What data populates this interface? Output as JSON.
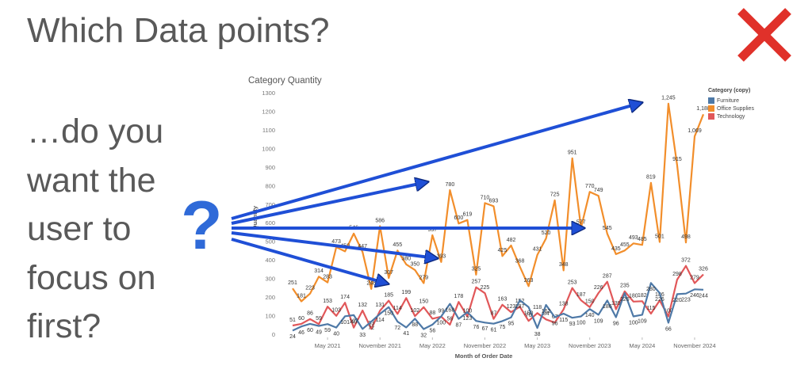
{
  "slide": {
    "title": "Which Data points?",
    "body_lines": [
      "…do you",
      "want the",
      "user to",
      "focus on",
      "first?"
    ],
    "mark": "?"
  },
  "chart_data": {
    "type": "line",
    "title": "Category Quantity",
    "x_label": "Month of Order Date",
    "y_label": "Quantity",
    "legend_title": "Category (copy)",
    "legend_position": "upper right",
    "grid": false,
    "categories": [
      null,
      null,
      null,
      null,
      "May 2021",
      null,
      null,
      null,
      null,
      null,
      "November 2021",
      null,
      null,
      null,
      null,
      null,
      "May 2022",
      null,
      null,
      null,
      null,
      null,
      "November 2022",
      null,
      null,
      null,
      null,
      null,
      "May 2023",
      null,
      null,
      null,
      null,
      null,
      "November 2023",
      null,
      null,
      null,
      null,
      null,
      "May 2024",
      null,
      null,
      null,
      null,
      null,
      "November 2024",
      null
    ],
    "ylim": [
      0,
      1300
    ],
    "yticks": [
      0,
      100,
      200,
      300,
      400,
      500,
      600,
      700,
      800,
      900,
      1000,
      1100,
      1200,
      1300
    ],
    "series": [
      {
        "name": "Furniture",
        "color": "#4e79a7",
        "values": [
          24,
          46,
          60,
          49,
          59,
          40,
          101,
          107,
          33,
          72,
          114,
          150,
          72,
          41,
          88,
          32,
          56,
          100,
          168,
          87,
          123,
          76,
          67,
          61,
          75,
          95,
          187,
          150,
          38,
          162,
          96,
          115,
          93,
          100,
          140,
          109,
          186,
          96,
          226,
          100,
          109,
          280,
          226,
          66,
          220,
          223,
          246,
          244
        ]
      },
      {
        "name": "Office Supplies",
        "color": "#f28e2b",
        "values": [
          251,
          181,
          223,
          314,
          283,
          473,
          450,
          546,
          447,
          248,
          586,
          307,
          455,
          380,
          350,
          279,
          537,
          393,
          780,
          600,
          619,
          325,
          710,
          693,
          425,
          482,
          368,
          263,
          431,
          520,
          725,
          348,
          951,
          577,
          770,
          749,
          545,
          435,
          455,
          493,
          485,
          819,
          501,
          1245,
          915,
          498,
          1069,
          1188
        ],
        "value_labels": [
          "251",
          "181",
          "223",
          "314",
          "283",
          "473",
          "450",
          "546",
          "447",
          "248",
          "586",
          "307",
          "455",
          "380",
          "350",
          "279",
          "537",
          "393",
          "780",
          "600",
          "619",
          "325",
          "710",
          "693",
          "425",
          "482",
          "368",
          "263",
          "431",
          "520",
          "725",
          "348",
          "951",
          "577",
          "770",
          "749",
          "545",
          "435",
          "455",
          "493",
          "485",
          "819",
          "501",
          "1,245",
          "915",
          "498",
          "1,069",
          "1,188"
        ]
      },
      {
        "name": "Technology",
        "color": "#e15759",
        "values": [
          51,
          60,
          86,
          59,
          153,
          103,
          174,
          40,
          132,
          33,
          131,
          185,
          114,
          199,
          102,
          150,
          88,
          99,
          56,
          178,
          100,
          257,
          225,
          87,
          163,
          123,
          152,
          76,
          118,
          84,
          67,
          138,
          253,
          187,
          150,
          226,
          287,
          139,
          235,
          180,
          182,
          115,
          186,
          100,
          298,
          372,
          279,
          326
        ]
      }
    ]
  }
}
